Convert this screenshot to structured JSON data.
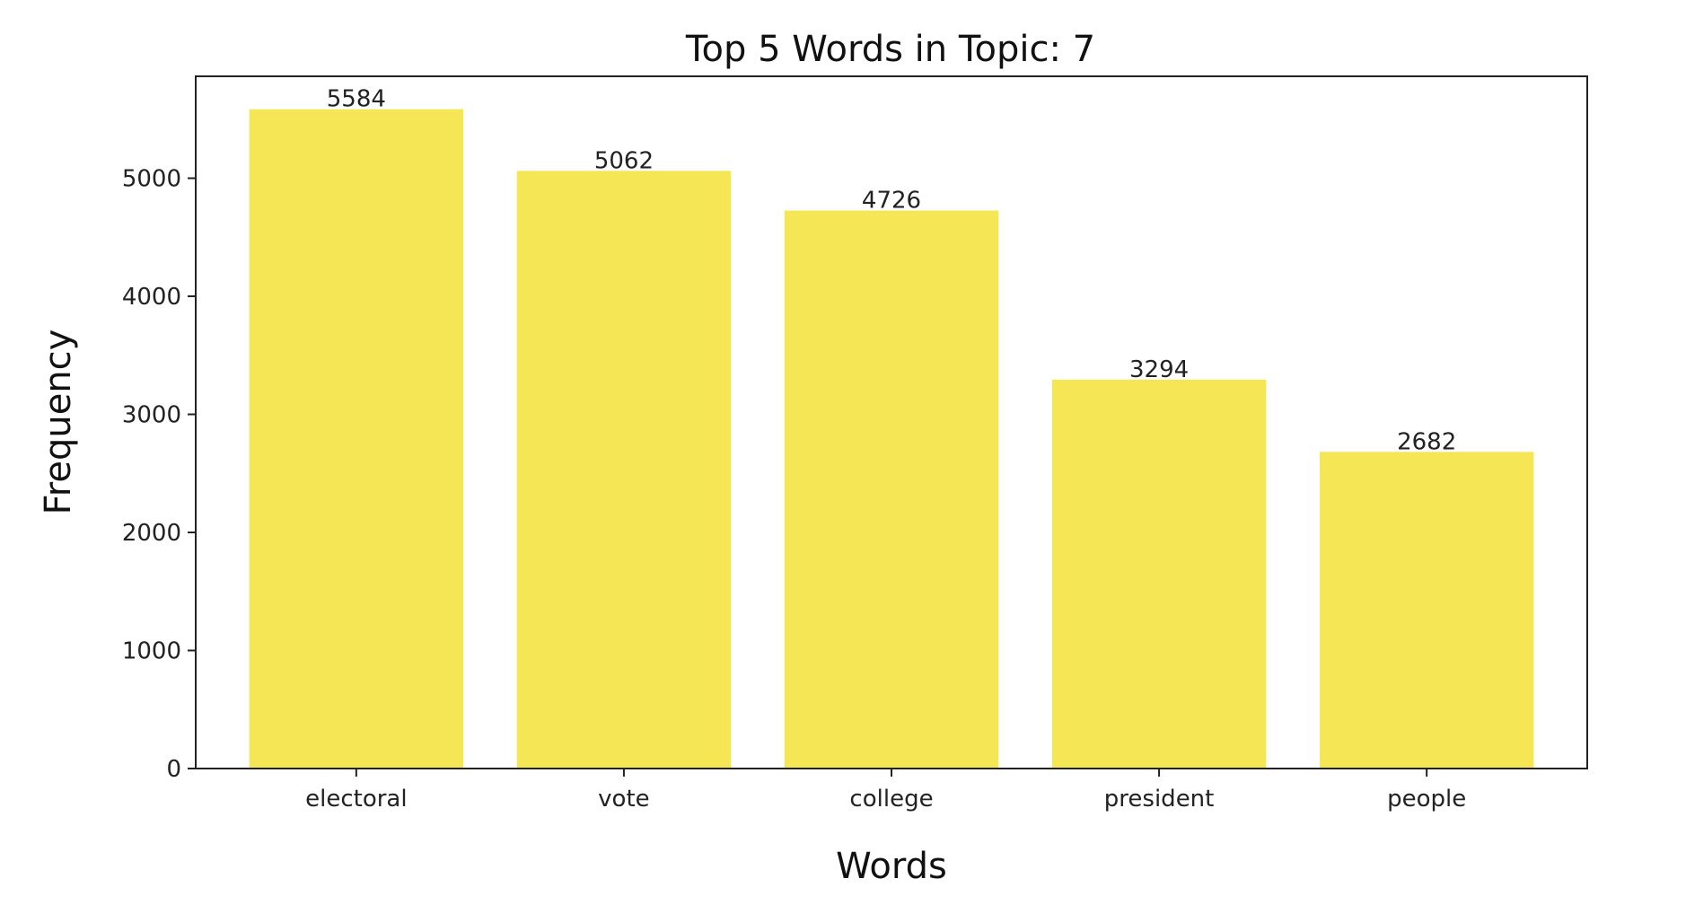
{
  "chart_data": {
    "type": "bar",
    "title": "Top 5 Words in Topic: 7",
    "xlabel": "Words",
    "ylabel": "Frequency",
    "categories": [
      "electoral",
      "vote",
      "college",
      "president",
      "people"
    ],
    "values": [
      5584,
      5062,
      4726,
      3294,
      2682
    ],
    "data_labels": [
      "5584",
      "5062",
      "4726",
      "3294",
      "2682"
    ],
    "yticks": [
      0,
      1000,
      2000,
      3000,
      4000,
      5000
    ],
    "ylim": [
      0,
      5863
    ],
    "grid": false,
    "legend": "none",
    "bar_color": "#f5e655"
  }
}
